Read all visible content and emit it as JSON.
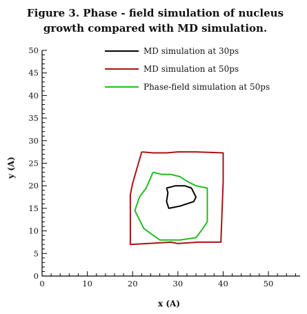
{
  "figure": {
    "title_line1": "Figure 3. Phase - field simulation of nucleus",
    "title_line2": "growth compared with MD simulation."
  },
  "chart_data": {
    "type": "line",
    "title": "Figure 3. Phase - field simulation of nucleus growth compared with MD simulation.",
    "xlabel": "x (A)",
    "ylabel": "y (A)",
    "xlim": [
      0,
      57
    ],
    "ylim": [
      0,
      50
    ],
    "xticks": [
      0,
      10,
      20,
      30,
      40,
      50
    ],
    "yticks": [
      0,
      5,
      10,
      15,
      20,
      25,
      30,
      35,
      40,
      45,
      50
    ],
    "grid": false,
    "legend_position": "top-right",
    "series": [
      {
        "name": "MD simulation at 30ps",
        "color": "#000000",
        "x": [
          27.5,
          29.5,
          31.5,
          33.0,
          34.0,
          33.5,
          30.5,
          28.0,
          27.5,
          27.8,
          27.5
        ],
        "y": [
          19.5,
          20.0,
          20.0,
          19.5,
          17.5,
          16.5,
          15.5,
          15.0,
          16.5,
          18.5,
          19.5
        ]
      },
      {
        "name": "MD simulation at 50ps",
        "color": "#aa1111",
        "x": [
          22.0,
          24.5,
          27.5,
          30.0,
          34.0,
          40.0,
          40.0,
          39.5,
          34.5,
          30.0,
          28.5,
          25.0,
          19.5,
          19.5,
          20.0,
          22.0
        ],
        "y": [
          27.5,
          27.3,
          27.3,
          27.5,
          27.5,
          27.3,
          21.0,
          7.5,
          7.5,
          7.2,
          7.5,
          7.3,
          7.0,
          18.0,
          20.5,
          27.5
        ]
      },
      {
        "name": "Phase-field simulation at 50ps",
        "color": "#22bb22",
        "x": [
          24.5,
          26.5,
          28.5,
          30.5,
          32.0,
          34.0,
          36.5,
          36.5,
          35.5,
          34.0,
          30.5,
          26.0,
          22.5,
          20.5,
          21.5,
          23.0,
          24.5
        ],
        "y": [
          23.0,
          22.5,
          22.5,
          22.0,
          21.0,
          20.0,
          19.5,
          12.0,
          10.5,
          8.5,
          8.0,
          8.0,
          10.5,
          14.5,
          17.5,
          19.5,
          23.0
        ]
      }
    ]
  }
}
